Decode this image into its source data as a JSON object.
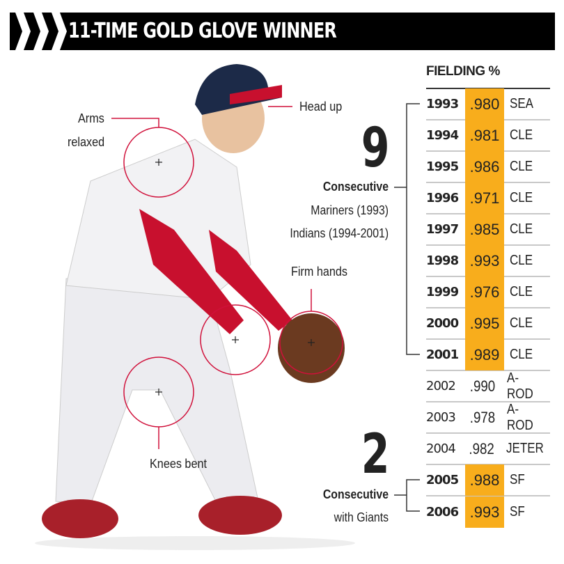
{
  "header": {
    "title": "11-TIME GOLD GLOVE WINNER"
  },
  "table": {
    "heading": "FIELDING %",
    "rows": [
      {
        "year": "1993",
        "pct": ".980",
        "team": "SEA",
        "gold": true
      },
      {
        "year": "1994",
        "pct": ".981",
        "team": "CLE",
        "gold": true
      },
      {
        "year": "1995",
        "pct": ".986",
        "team": "CLE",
        "gold": true
      },
      {
        "year": "1996",
        "pct": ".971",
        "team": "CLE",
        "gold": true
      },
      {
        "year": "1997",
        "pct": ".985",
        "team": "CLE",
        "gold": true
      },
      {
        "year": "1998",
        "pct": ".993",
        "team": "CLE",
        "gold": true
      },
      {
        "year": "1999",
        "pct": ".976",
        "team": "CLE",
        "gold": true
      },
      {
        "year": "2000",
        "pct": ".995",
        "team": "CLE",
        "gold": true
      },
      {
        "year": "2001",
        "pct": ".989",
        "team": "CLE",
        "gold": true
      },
      {
        "year": "2002",
        "pct": ".990",
        "team": "A-ROD",
        "gold": false
      },
      {
        "year": "2003",
        "pct": ".978",
        "team": "A-ROD",
        "gold": false
      },
      {
        "year": "2004",
        "pct": ".982",
        "team": "JETER",
        "gold": false
      },
      {
        "year": "2005",
        "pct": ".988",
        "team": "SF",
        "gold": true
      },
      {
        "year": "2006",
        "pct": ".993",
        "team": "SF",
        "gold": true
      }
    ]
  },
  "streak1": {
    "number": "9",
    "label": "Consecutive",
    "line1": "Mariners (1993)",
    "line2": "Indians (1994-2001)"
  },
  "streak2": {
    "number": "2",
    "label": "Consecutive",
    "line1": "with Giants"
  },
  "annotations": {
    "arms1": "Arms",
    "arms2": "relaxed",
    "head": "Head up",
    "hands": "Firm hands",
    "knees": "Knees bent"
  },
  "colors": {
    "gold": "#f8ad1c",
    "accent": "#d0103a",
    "header_bg": "#000000"
  }
}
